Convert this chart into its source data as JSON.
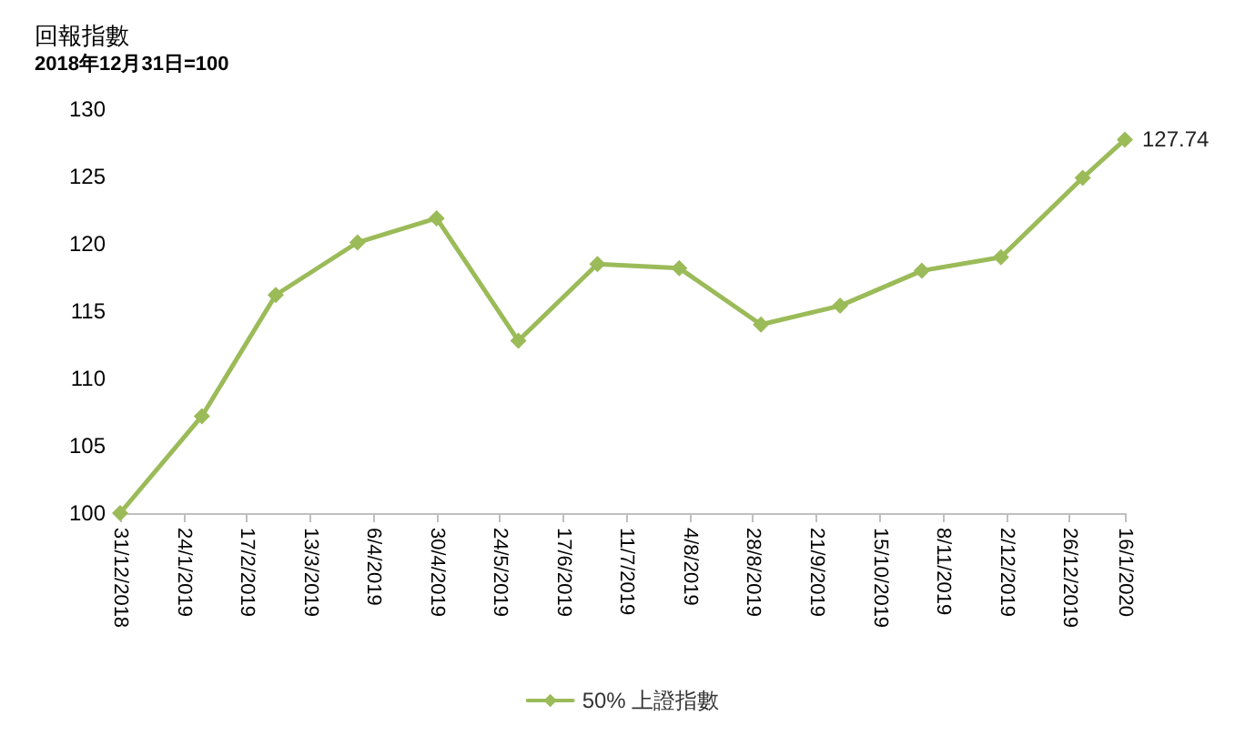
{
  "chart_data": {
    "type": "line",
    "title": "回報指數",
    "subtitle": "2018年12月31日=100",
    "x": [
      "2018-12-31",
      "2019-01-31",
      "2019-02-28",
      "2019-03-31",
      "2019-04-30",
      "2019-05-31",
      "2019-06-30",
      "2019-07-31",
      "2019-08-31",
      "2019-09-30",
      "2019-10-31",
      "2019-11-30",
      "2019-12-31",
      "2020-01-16"
    ],
    "series": [
      {
        "name": "50% 上證指數",
        "color": "#9bbb59",
        "values": [
          100,
          107.2,
          116.2,
          120.1,
          121.9,
          112.8,
          118.5,
          118.2,
          114,
          115.4,
          118,
          119,
          124.9,
          127.74
        ],
        "value_labels": [
          null,
          null,
          null,
          null,
          null,
          null,
          null,
          null,
          null,
          null,
          null,
          null,
          null,
          "127.74"
        ]
      }
    ],
    "xlim": [
      "2018-12-31",
      "2020-01-16"
    ],
    "xticks": [
      {
        "value": "2018-12-31",
        "label": "31/12/2018"
      },
      {
        "value": "2019-01-24",
        "label": "24/1/2019"
      },
      {
        "value": "2019-02-17",
        "label": "17/2/2019"
      },
      {
        "value": "2019-03-13",
        "label": "13/3/2019"
      },
      {
        "value": "2019-04-06",
        "label": "6/4/2019"
      },
      {
        "value": "2019-04-30",
        "label": "30/4/2019"
      },
      {
        "value": "2019-05-24",
        "label": "24/5/2019"
      },
      {
        "value": "2019-06-17",
        "label": "17/6/2019"
      },
      {
        "value": "2019-07-11",
        "label": "11/7/2019"
      },
      {
        "value": "2019-08-04",
        "label": "4/8/2019"
      },
      {
        "value": "2019-08-28",
        "label": "28/8/2019"
      },
      {
        "value": "2019-09-21",
        "label": "21/9/2019"
      },
      {
        "value": "2019-10-15",
        "label": "15/10/2019"
      },
      {
        "value": "2019-11-08",
        "label": "8/11/2019"
      },
      {
        "value": "2019-12-02",
        "label": "2/12/2019"
      },
      {
        "value": "2019-12-26",
        "label": "26/12/2019"
      },
      {
        "value": "2020-01-16",
        "label": "16/1/2020"
      }
    ],
    "ylim": [
      100,
      130
    ],
    "yticks": [
      100,
      105,
      110,
      115,
      120,
      125,
      130
    ],
    "grid": false,
    "legend": "bottom",
    "marker": "diamond",
    "line_style": "solid"
  }
}
